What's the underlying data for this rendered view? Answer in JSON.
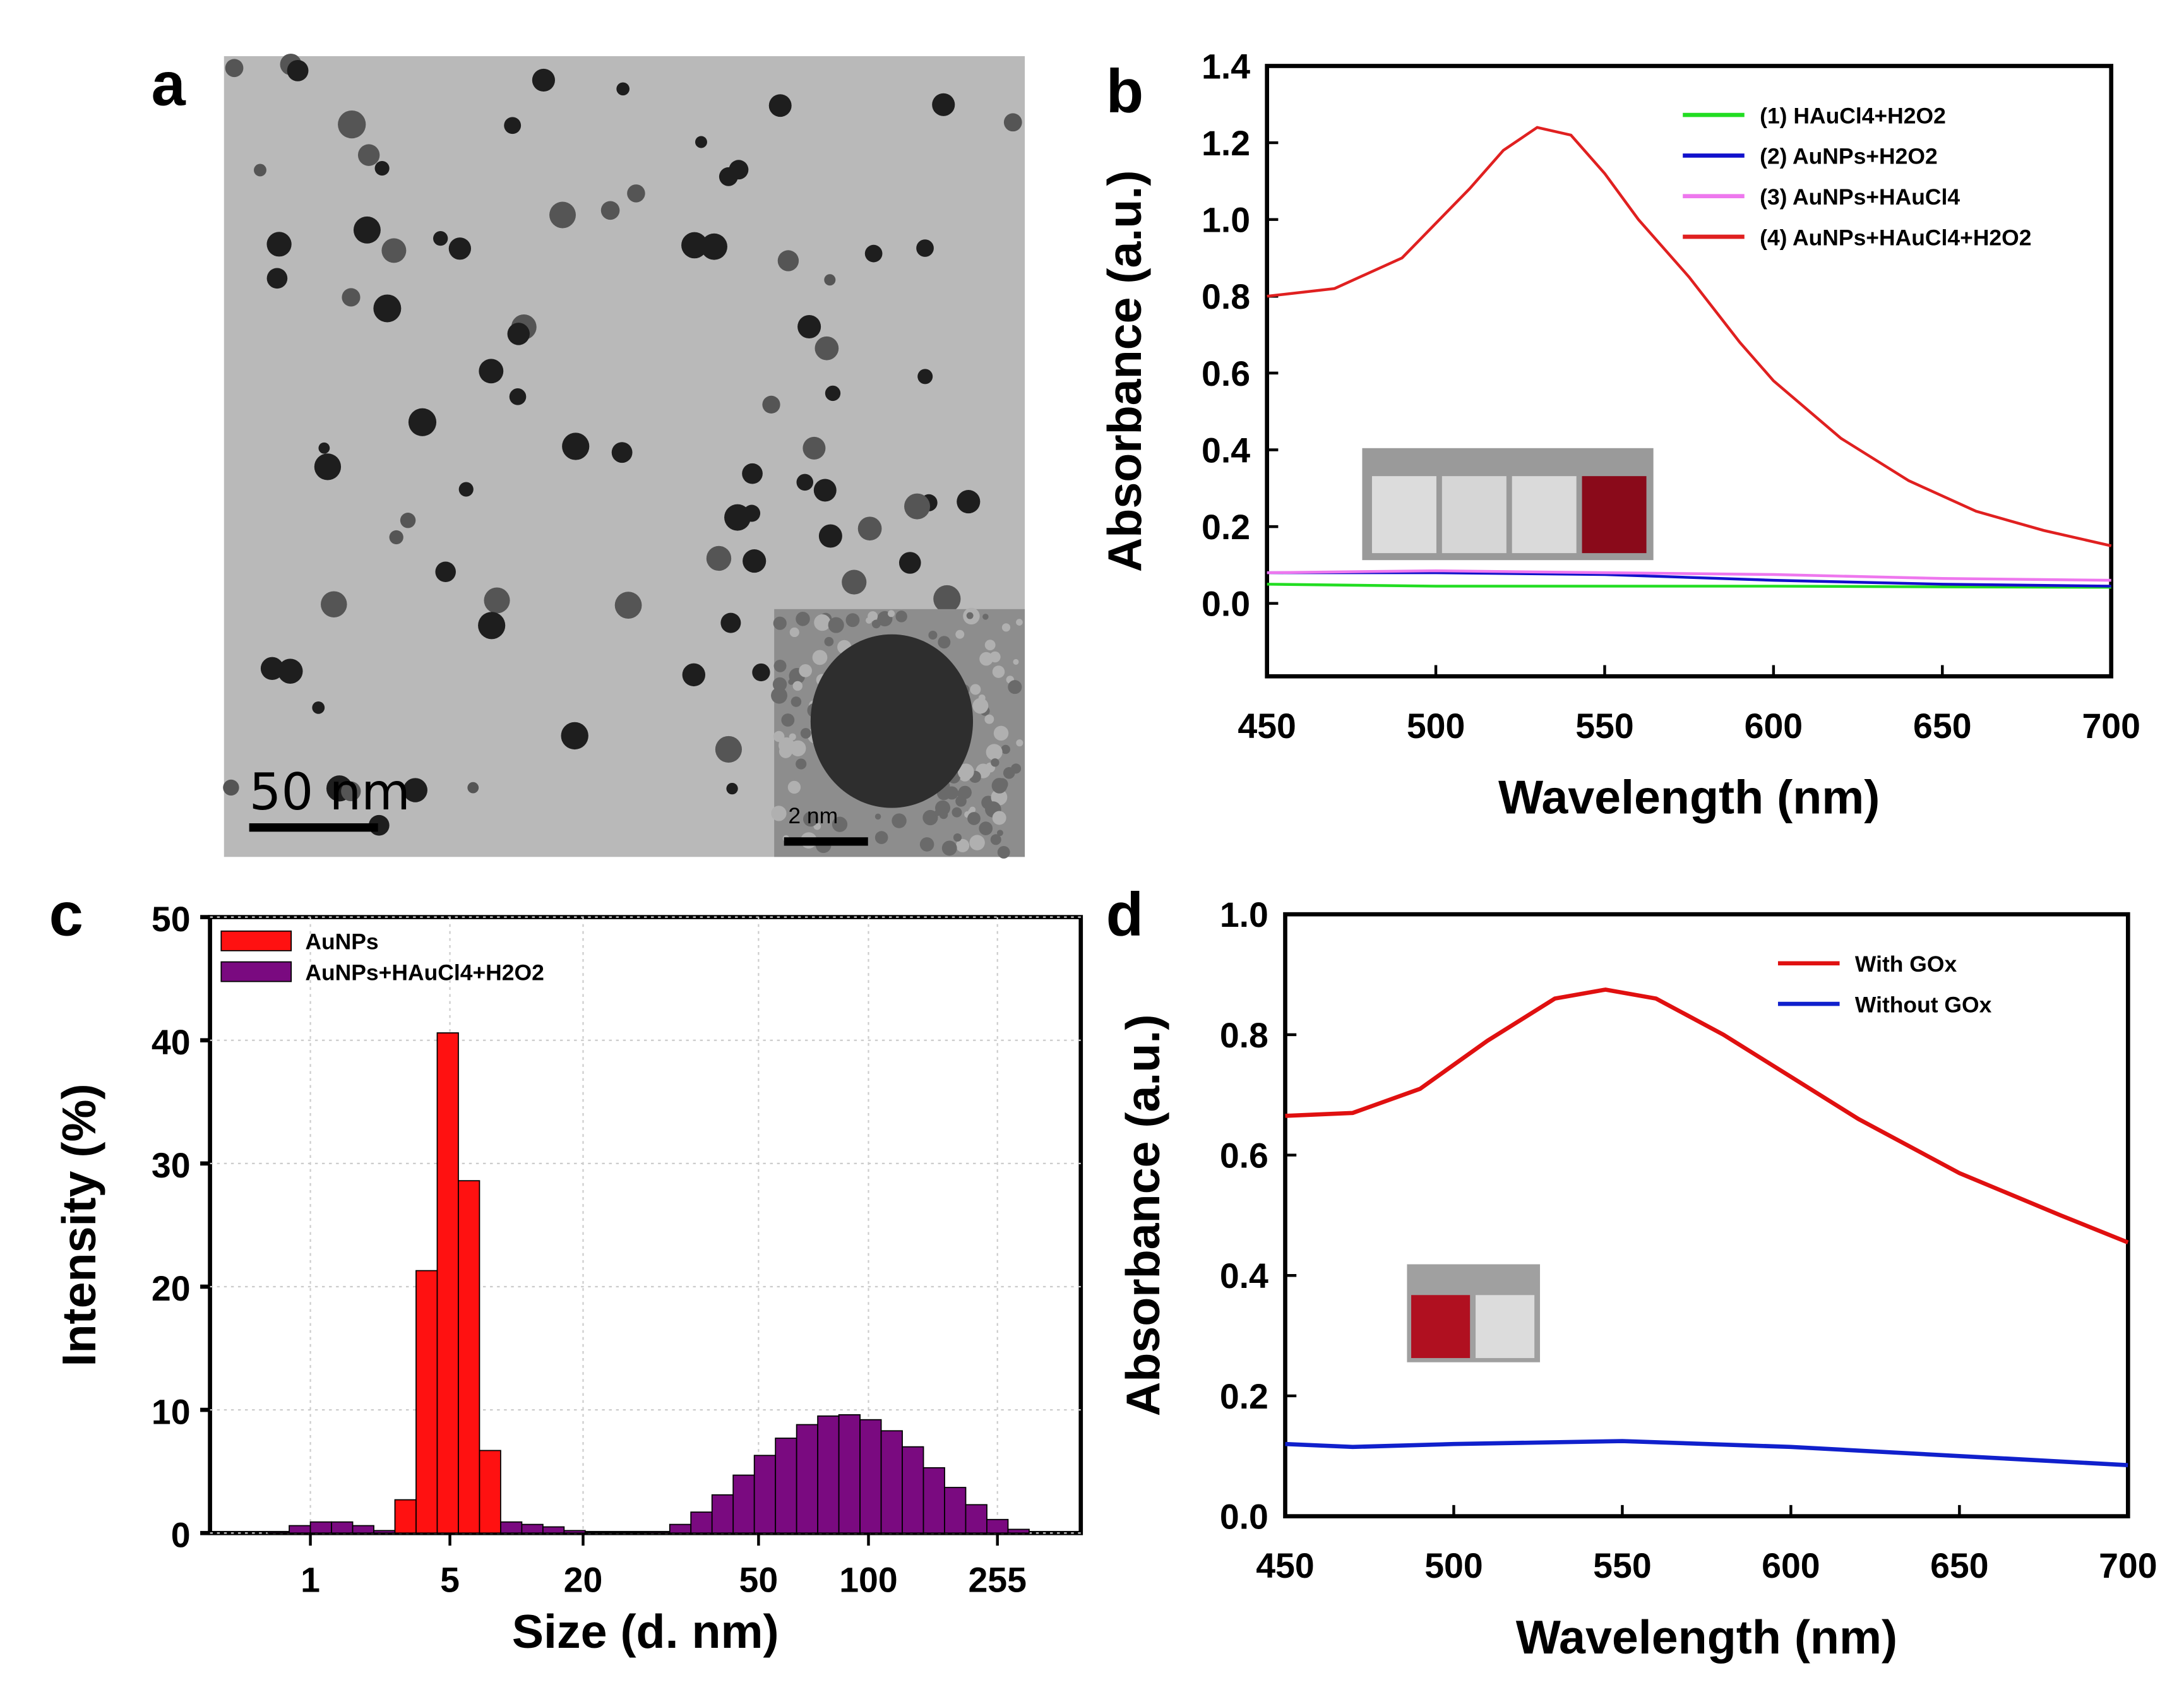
{
  "panel_labels": [
    "a",
    "b",
    "c",
    "d"
  ],
  "tem": {
    "scale_bar": "50  nm",
    "inset_scale_bar": "2 nm"
  },
  "chart_data": [
    {
      "panel": "b",
      "type": "line",
      "xlabel": "Wavelength (nm)",
      "ylabel": "Absorbance (a.u.)",
      "xlim": [
        450,
        700
      ],
      "ylim": [
        -0.19,
        1.4
      ],
      "xticks": [
        "450",
        "500",
        "550",
        "600",
        "650",
        "700"
      ],
      "yticks": [
        "0.0",
        "0.2",
        "0.4",
        "0.6",
        "0.8",
        "1.0",
        "1.2",
        "1.4"
      ],
      "legend_position": "top-right",
      "series": [
        {
          "name": "(1)  HAuCl4+H2O2",
          "color": "#22dd22",
          "x": [
            450,
            500,
            550,
            600,
            650,
            700
          ],
          "y": [
            0.05,
            0.045,
            0.045,
            0.045,
            0.043,
            0.042
          ]
        },
        {
          "name": "(2) AuNPs+H2O2",
          "color": "#1111cc",
          "x": [
            450,
            500,
            550,
            600,
            650,
            700
          ],
          "y": [
            0.08,
            0.08,
            0.075,
            0.06,
            0.05,
            0.045
          ]
        },
        {
          "name": "(3)  AuNPs+HAuCl4",
          "color": "#ee77ee",
          "x": [
            450,
            500,
            550,
            600,
            650,
            700
          ],
          "y": [
            0.08,
            0.085,
            0.08,
            0.075,
            0.065,
            0.06
          ]
        },
        {
          "name": "(4) AuNPs+HAuCl4+H2O2",
          "color": "#e02020",
          "x": [
            450,
            470,
            490,
            510,
            520,
            530,
            540,
            550,
            560,
            575,
            590,
            600,
            620,
            640,
            660,
            680,
            700
          ],
          "y": [
            0.8,
            0.82,
            0.9,
            1.08,
            1.18,
            1.24,
            1.22,
            1.12,
            1.0,
            0.85,
            0.68,
            0.58,
            0.43,
            0.32,
            0.24,
            0.19,
            0.15
          ]
        }
      ]
    },
    {
      "panel": "c",
      "type": "bar",
      "xlabel": "Size (d. nm)",
      "ylabel": "Intensity (%)",
      "ylim": [
        0,
        50
      ],
      "yticks": [
        "0",
        "10",
        "20",
        "30",
        "40",
        "50"
      ],
      "bin_count": 41,
      "x_tick_labels": [
        "1",
        "5",
        "20",
        "50",
        "100",
        "255"
      ],
      "x_tick_at_bin": [
        5.0,
        11.6,
        17.9,
        26.2,
        31.4,
        37.5
      ],
      "legend_position": "top-left",
      "series": [
        {
          "name": "AuNPs",
          "color": "#ff1111",
          "bins": [
            9,
            10,
            11,
            12,
            13
          ],
          "values": [
            2.7,
            21.3,
            40.6,
            28.6,
            6.7
          ]
        },
        {
          "name": "AuNPs+HAuCl4+H2O2",
          "color": "#7a0a80",
          "bins": [
            3,
            4,
            5,
            6,
            7,
            8,
            14,
            15,
            16,
            17,
            18,
            19,
            20,
            21,
            22,
            23,
            24,
            25,
            26,
            27,
            28,
            29,
            30,
            31,
            32,
            33,
            34,
            35,
            36,
            37,
            38
          ],
          "values": [
            0.1,
            0.6,
            0.9,
            0.9,
            0.6,
            0.2,
            0.9,
            0.7,
            0.5,
            0.2,
            0.05,
            0.05,
            0.05,
            0.1,
            0.7,
            1.7,
            3.1,
            4.7,
            6.3,
            7.7,
            8.8,
            9.5,
            9.6,
            9.2,
            8.3,
            7.0,
            5.3,
            3.7,
            2.3,
            1.1,
            0.3
          ]
        }
      ]
    },
    {
      "panel": "d",
      "type": "line",
      "xlabel": "Wavelength (nm)",
      "ylabel": "Absorbance (a.u.)",
      "xlim": [
        450,
        700
      ],
      "ylim": [
        0,
        1.0
      ],
      "xticks": [
        "450",
        "500",
        "550",
        "600",
        "650",
        "700"
      ],
      "yticks": [
        "0.0",
        "0.2",
        "0.4",
        "0.6",
        "0.8",
        "1.0"
      ],
      "legend_position": "top-right",
      "series": [
        {
          "name": "With GOx",
          "color": "#e01010",
          "x": [
            450,
            470,
            490,
            510,
            530,
            545,
            560,
            580,
            600,
            620,
            650,
            680,
            700
          ],
          "y": [
            0.665,
            0.67,
            0.71,
            0.79,
            0.86,
            0.875,
            0.86,
            0.8,
            0.73,
            0.66,
            0.57,
            0.5,
            0.455
          ]
        },
        {
          "name": "Without GOx",
          "color": "#1020cc",
          "x": [
            450,
            470,
            500,
            550,
            600,
            650,
            700
          ],
          "y": [
            0.12,
            0.115,
            0.12,
            0.125,
            0.115,
            0.1,
            0.085
          ]
        }
      ]
    }
  ]
}
